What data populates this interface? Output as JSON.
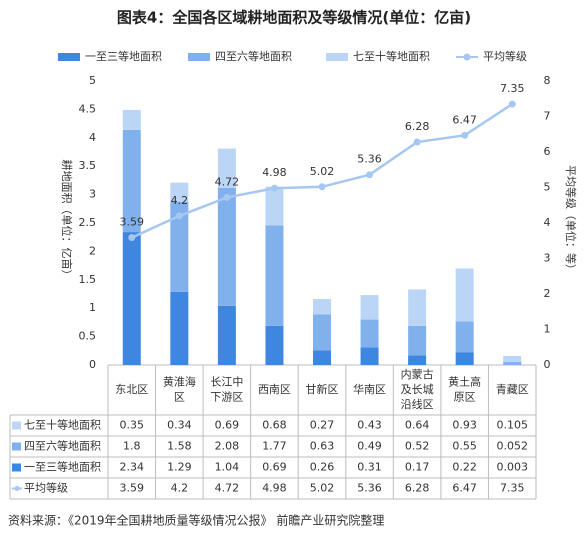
{
  "chart_data": {
    "type": "bar",
    "title": "图表4：全国各区域耕地面积及等级情况(单位：亿亩)",
    "y_label": "耕地面积（单位：亿亩）",
    "y2_label": "平均等级（单位：等）",
    "source": "资料来源：《2019年全国耕地质量等级情况公报》 前瞻产业研究院整理",
    "categories": [
      "东北区",
      "黄淮海区",
      "长江中下游区",
      "西南区",
      "甘新区",
      "华南区",
      "内蒙古及长城沿线区",
      "黄土高原区",
      "青藏区"
    ],
    "series": [
      {
        "name": "一至三等地面积",
        "type": "bar",
        "color": "#3f86e0",
        "values": [
          2.34,
          1.29,
          1.04,
          0.69,
          0.26,
          0.31,
          0.17,
          0.22,
          0.003
        ]
      },
      {
        "name": "四至六等地面积",
        "type": "bar",
        "color": "#80b1ed",
        "values": [
          1.8,
          1.58,
          2.08,
          1.77,
          0.63,
          0.49,
          0.52,
          0.55,
          0.052
        ]
      },
      {
        "name": "七至十等地面积",
        "type": "bar",
        "color": "#bad5f6",
        "values": [
          0.35,
          0.34,
          0.69,
          0.68,
          0.27,
          0.43,
          0.64,
          0.93,
          0.105
        ]
      },
      {
        "name": "平均等级",
        "type": "line",
        "axis": "y2",
        "color": "#a6c7f0",
        "values": [
          3.59,
          4.2,
          4.72,
          4.98,
          5.02,
          5.36,
          6.28,
          6.47,
          7.35
        ]
      }
    ],
    "ylim": [
      0,
      5
    ],
    "yticks": [
      0,
      0.5,
      1,
      1.5,
      2,
      2.5,
      3,
      3.5,
      4,
      4.5,
      5
    ],
    "y2lim": [
      0,
      8
    ],
    "y2ticks": [
      0,
      1,
      2,
      3,
      4,
      5,
      6,
      7,
      8
    ],
    "grid": false
  }
}
